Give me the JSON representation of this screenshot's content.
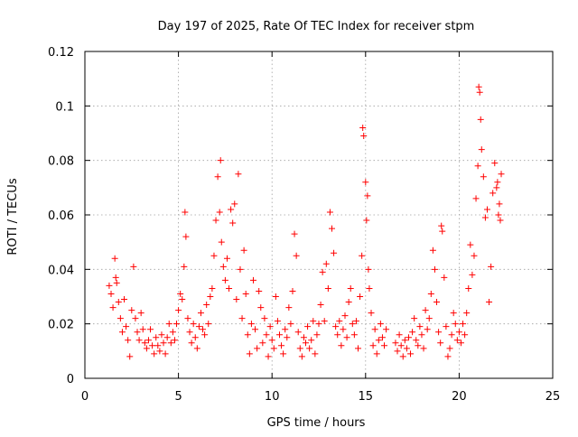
{
  "chart_data": {
    "type": "scatter",
    "title": "Day 197 of 2025, Rate Of TEC Index for receiver stpm",
    "xlabel": "GPS time / hours",
    "ylabel": "ROTI / TECUs",
    "xlim": [
      0,
      25
    ],
    "ylim": [
      0,
      0.12
    ],
    "xticks": [
      0,
      5,
      10,
      15,
      20,
      25
    ],
    "xtick_labels": [
      "0",
      "5",
      "10",
      "15",
      "20",
      "25"
    ],
    "yticks": [
      0,
      0.02,
      0.04,
      0.06,
      0.08,
      0.1,
      0.12
    ],
    "ytick_labels": [
      "0",
      "0.02",
      "0.04",
      "0.06",
      "0.08",
      "0.1",
      "0.12"
    ],
    "grid": true,
    "marker": "plus",
    "color": "#ff0000",
    "series": [
      {
        "points": [
          [
            1.3,
            0.034
          ],
          [
            1.4,
            0.031
          ],
          [
            1.5,
            0.026
          ],
          [
            1.6,
            0.044
          ],
          [
            1.65,
            0.037
          ],
          [
            1.7,
            0.035
          ],
          [
            1.8,
            0.028
          ],
          [
            1.9,
            0.022
          ],
          [
            2.0,
            0.017
          ],
          [
            2.1,
            0.029
          ],
          [
            2.2,
            0.019
          ],
          [
            2.3,
            0.014
          ],
          [
            2.4,
            0.008
          ],
          [
            2.5,
            0.025
          ],
          [
            2.6,
            0.041
          ],
          [
            2.7,
            0.022
          ],
          [
            2.8,
            0.017
          ],
          [
            2.9,
            0.014
          ],
          [
            3.0,
            0.024
          ],
          [
            3.1,
            0.018
          ],
          [
            3.2,
            0.013
          ],
          [
            3.3,
            0.011
          ],
          [
            3.4,
            0.014
          ],
          [
            3.5,
            0.018
          ],
          [
            3.6,
            0.012
          ],
          [
            3.7,
            0.009
          ],
          [
            3.8,
            0.015
          ],
          [
            3.9,
            0.012
          ],
          [
            4.0,
            0.01
          ],
          [
            4.1,
            0.016
          ],
          [
            4.2,
            0.013
          ],
          [
            4.3,
            0.009
          ],
          [
            4.4,
            0.015
          ],
          [
            4.5,
            0.02
          ],
          [
            4.6,
            0.013
          ],
          [
            4.7,
            0.017
          ],
          [
            4.8,
            0.014
          ],
          [
            4.9,
            0.02
          ],
          [
            5.0,
            0.025
          ],
          [
            5.1,
            0.031
          ],
          [
            5.2,
            0.029
          ],
          [
            5.3,
            0.041
          ],
          [
            5.35,
            0.061
          ],
          [
            5.4,
            0.052
          ],
          [
            5.5,
            0.022
          ],
          [
            5.6,
            0.017
          ],
          [
            5.7,
            0.013
          ],
          [
            5.8,
            0.02
          ],
          [
            5.9,
            0.015
          ],
          [
            6.0,
            0.011
          ],
          [
            6.1,
            0.019
          ],
          [
            6.2,
            0.024
          ],
          [
            6.3,
            0.018
          ],
          [
            6.4,
            0.016
          ],
          [
            6.5,
            0.027
          ],
          [
            6.6,
            0.02
          ],
          [
            6.7,
            0.03
          ],
          [
            6.8,
            0.033
          ],
          [
            6.9,
            0.045
          ],
          [
            7.0,
            0.058
          ],
          [
            7.1,
            0.074
          ],
          [
            7.2,
            0.061
          ],
          [
            7.25,
            0.08
          ],
          [
            7.3,
            0.05
          ],
          [
            7.4,
            0.041
          ],
          [
            7.5,
            0.036
          ],
          [
            7.6,
            0.044
          ],
          [
            7.7,
            0.033
          ],
          [
            7.8,
            0.062
          ],
          [
            7.9,
            0.057
          ],
          [
            8.0,
            0.064
          ],
          [
            8.1,
            0.029
          ],
          [
            8.2,
            0.075
          ],
          [
            8.3,
            0.04
          ],
          [
            8.4,
            0.022
          ],
          [
            8.5,
            0.047
          ],
          [
            8.6,
            0.031
          ],
          [
            8.7,
            0.016
          ],
          [
            8.8,
            0.009
          ],
          [
            8.9,
            0.02
          ],
          [
            9.0,
            0.036
          ],
          [
            9.1,
            0.018
          ],
          [
            9.2,
            0.011
          ],
          [
            9.3,
            0.032
          ],
          [
            9.4,
            0.026
          ],
          [
            9.5,
            0.013
          ],
          [
            9.6,
            0.022
          ],
          [
            9.7,
            0.016
          ],
          [
            9.8,
            0.008
          ],
          [
            9.9,
            0.019
          ],
          [
            10.0,
            0.014
          ],
          [
            10.1,
            0.011
          ],
          [
            10.2,
            0.03
          ],
          [
            10.3,
            0.021
          ],
          [
            10.4,
            0.016
          ],
          [
            10.5,
            0.012
          ],
          [
            10.6,
            0.009
          ],
          [
            10.7,
            0.018
          ],
          [
            10.8,
            0.015
          ],
          [
            10.9,
            0.026
          ],
          [
            11.0,
            0.02
          ],
          [
            11.1,
            0.032
          ],
          [
            11.2,
            0.053
          ],
          [
            11.3,
            0.045
          ],
          [
            11.4,
            0.017
          ],
          [
            11.5,
            0.011
          ],
          [
            11.6,
            0.008
          ],
          [
            11.7,
            0.015
          ],
          [
            11.8,
            0.013
          ],
          [
            11.9,
            0.019
          ],
          [
            12.0,
            0.011
          ],
          [
            12.1,
            0.014
          ],
          [
            12.2,
            0.021
          ],
          [
            12.3,
            0.009
          ],
          [
            12.4,
            0.016
          ],
          [
            12.5,
            0.02
          ],
          [
            12.6,
            0.027
          ],
          [
            12.7,
            0.039
          ],
          [
            12.8,
            0.021
          ],
          [
            12.9,
            0.042
          ],
          [
            13.0,
            0.033
          ],
          [
            13.1,
            0.061
          ],
          [
            13.2,
            0.055
          ],
          [
            13.3,
            0.046
          ],
          [
            13.4,
            0.019
          ],
          [
            13.5,
            0.016
          ],
          [
            13.6,
            0.021
          ],
          [
            13.7,
            0.012
          ],
          [
            13.8,
            0.018
          ],
          [
            13.9,
            0.023
          ],
          [
            14.0,
            0.015
          ],
          [
            14.1,
            0.028
          ],
          [
            14.2,
            0.033
          ],
          [
            14.3,
            0.02
          ],
          [
            14.4,
            0.016
          ],
          [
            14.5,
            0.021
          ],
          [
            14.6,
            0.011
          ],
          [
            14.7,
            0.03
          ],
          [
            14.8,
            0.045
          ],
          [
            14.85,
            0.092
          ],
          [
            14.9,
            0.089
          ],
          [
            15.0,
            0.072
          ],
          [
            15.05,
            0.058
          ],
          [
            15.1,
            0.067
          ],
          [
            15.15,
            0.04
          ],
          [
            15.2,
            0.033
          ],
          [
            15.3,
            0.024
          ],
          [
            15.4,
            0.012
          ],
          [
            15.5,
            0.018
          ],
          [
            15.6,
            0.009
          ],
          [
            15.7,
            0.014
          ],
          [
            15.8,
            0.02
          ],
          [
            15.9,
            0.015
          ],
          [
            16.0,
            0.012
          ],
          [
            16.1,
            0.018
          ],
          [
            16.6,
            0.013
          ],
          [
            16.7,
            0.01
          ],
          [
            16.8,
            0.016
          ],
          [
            16.9,
            0.012
          ],
          [
            17.0,
            0.008
          ],
          [
            17.1,
            0.014
          ],
          [
            17.2,
            0.011
          ],
          [
            17.3,
            0.015
          ],
          [
            17.4,
            0.009
          ],
          [
            17.5,
            0.017
          ],
          [
            17.6,
            0.022
          ],
          [
            17.7,
            0.014
          ],
          [
            17.8,
            0.012
          ],
          [
            17.9,
            0.019
          ],
          [
            18.0,
            0.016
          ],
          [
            18.1,
            0.011
          ],
          [
            18.2,
            0.025
          ],
          [
            18.3,
            0.018
          ],
          [
            18.4,
            0.022
          ],
          [
            18.5,
            0.031
          ],
          [
            18.6,
            0.047
          ],
          [
            18.7,
            0.04
          ],
          [
            18.8,
            0.028
          ],
          [
            18.9,
            0.017
          ],
          [
            19.0,
            0.013
          ],
          [
            19.05,
            0.056
          ],
          [
            19.1,
            0.054
          ],
          [
            19.2,
            0.037
          ],
          [
            19.3,
            0.019
          ],
          [
            19.4,
            0.008
          ],
          [
            19.5,
            0.011
          ],
          [
            19.6,
            0.016
          ],
          [
            19.7,
            0.024
          ],
          [
            19.8,
            0.02
          ],
          [
            19.9,
            0.014
          ],
          [
            20.0,
            0.017
          ],
          [
            20.1,
            0.013
          ],
          [
            20.2,
            0.02
          ],
          [
            20.3,
            0.016
          ],
          [
            20.4,
            0.024
          ],
          [
            20.5,
            0.033
          ],
          [
            20.6,
            0.049
          ],
          [
            20.7,
            0.038
          ],
          [
            20.8,
            0.045
          ],
          [
            20.9,
            0.066
          ],
          [
            21.0,
            0.078
          ],
          [
            21.05,
            0.107
          ],
          [
            21.1,
            0.105
          ],
          [
            21.15,
            0.095
          ],
          [
            21.2,
            0.084
          ],
          [
            21.3,
            0.074
          ],
          [
            21.4,
            0.059
          ],
          [
            21.5,
            0.062
          ],
          [
            21.6,
            0.028
          ],
          [
            21.7,
            0.041
          ],
          [
            21.8,
            0.068
          ],
          [
            21.9,
            0.079
          ],
          [
            22.0,
            0.07
          ],
          [
            22.05,
            0.072
          ],
          [
            22.1,
            0.06
          ],
          [
            22.15,
            0.064
          ],
          [
            22.2,
            0.058
          ],
          [
            22.25,
            0.075
          ]
        ]
      }
    ]
  }
}
